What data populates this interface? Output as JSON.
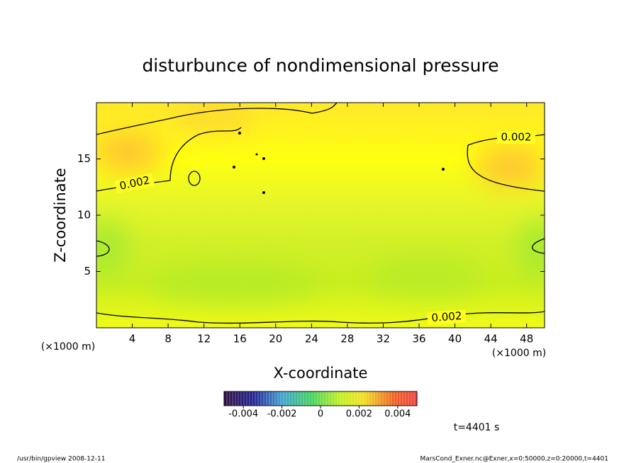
{
  "chart_data": {
    "type": "contour",
    "title": "disturbunce of nondimensional pressure",
    "x_label": "X-coordinate",
    "y_label": "Z-coordinate",
    "x_unit": "(×1000 m)",
    "y_unit": "(×1000 m)",
    "xlim": [
      0,
      50
    ],
    "ylim": [
      0,
      20
    ],
    "xticks": [
      4,
      8,
      12,
      16,
      20,
      24,
      28,
      32,
      36,
      40,
      44,
      48
    ],
    "yticks": [
      5,
      10,
      15
    ],
    "contour_labels": [
      "0.002",
      "0.002",
      "0.002"
    ],
    "colorbar": {
      "lim": [
        -0.005,
        0.005
      ],
      "ticks": [
        -0.004,
        -0.002,
        0,
        0.002,
        0.004
      ]
    },
    "time_note": "t=4401 s",
    "footer_left": "/usr/bin/gpview   2008-12-11",
    "footer_right": "MarsCond_Exner.nc@Exner,x=0:50000,z=0:20000,t=4401"
  }
}
